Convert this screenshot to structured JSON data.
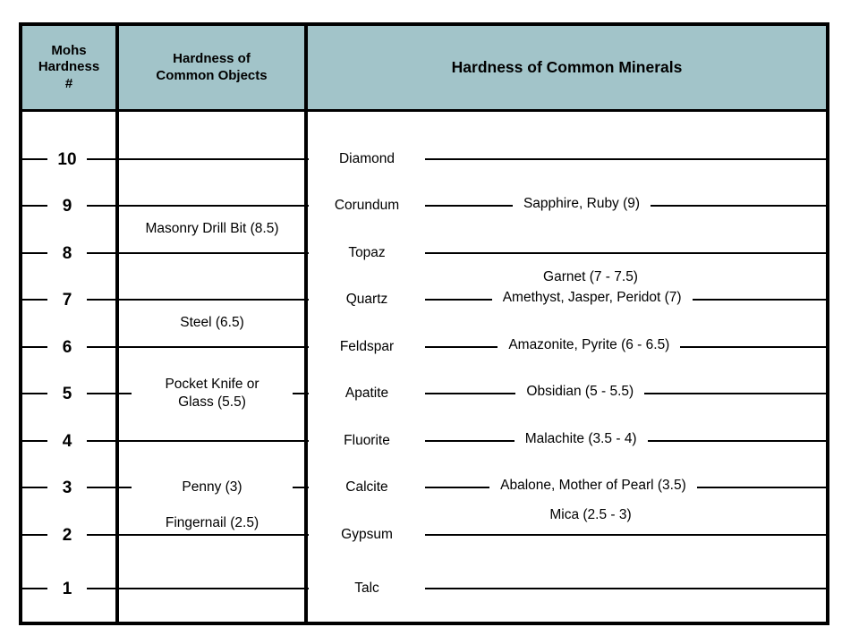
{
  "colors": {
    "header_bg": "#a2c4c9",
    "line": "#000000",
    "text": "#000000",
    "background": "#ffffff"
  },
  "header": {
    "mohs_number": "Mohs\nHardness\n#",
    "common_objects": "Hardness of\nCommon Objects",
    "common_minerals": "Hardness of Common Minerals"
  },
  "scale_rows": [
    {
      "number": "10",
      "mineral": "Diamond",
      "object": null,
      "gems": null
    },
    {
      "number": "9",
      "mineral": "Corundum",
      "object": null,
      "gems": "Sapphire, Ruby (9)"
    },
    {
      "number": "8",
      "mineral": "Topaz",
      "object": null,
      "gems": null
    },
    {
      "number": "7",
      "mineral": "Quartz",
      "object": null,
      "gems": "Amethyst, Jasper, Peridot (7)"
    },
    {
      "number": "6",
      "mineral": "Feldspar",
      "object": null,
      "gems": "Amazonite, Pyrite (6 - 6.5)"
    },
    {
      "number": "5",
      "mineral": "Apatite",
      "object": "Pocket Knife or\nGlass (5.5)",
      "gems": "Obsidian (5 - 5.5)"
    },
    {
      "number": "4",
      "mineral": "Fluorite",
      "object": null,
      "gems": "Malachite (3.5 - 4)"
    },
    {
      "number": "3",
      "mineral": "Calcite",
      "object": "Penny (3)",
      "gems": "Abalone, Mother of Pearl (3.5)"
    },
    {
      "number": "2",
      "mineral": "Gypsum",
      "object": null,
      "gems": null
    },
    {
      "number": "1",
      "mineral": "Talc",
      "object": null,
      "gems": null
    }
  ],
  "floating_labels": [
    {
      "id": "masonry-drill-bit",
      "text": "Masonry Drill Bit (8.5)",
      "column": "objects"
    },
    {
      "id": "steel",
      "text": "Steel (6.5)",
      "column": "objects"
    },
    {
      "id": "fingernail",
      "text": "Fingernail (2.5)",
      "column": "objects"
    },
    {
      "id": "garnet",
      "text": "Garnet (7 - 7.5)",
      "column": "minerals"
    },
    {
      "id": "mica",
      "text": "Mica (2.5 - 3)",
      "column": "minerals"
    }
  ]
}
